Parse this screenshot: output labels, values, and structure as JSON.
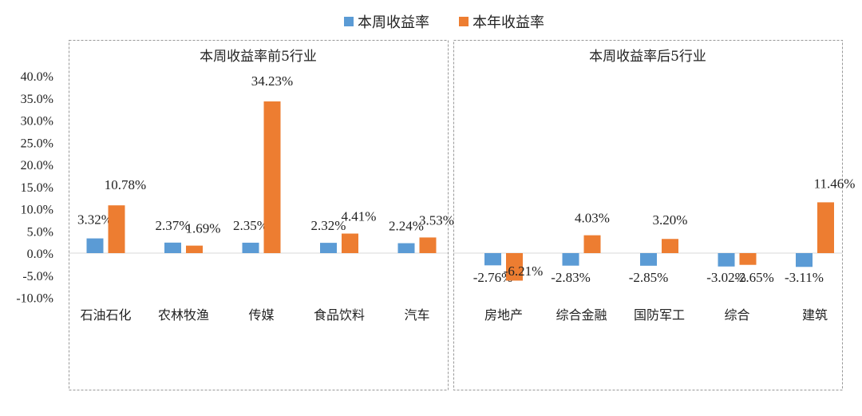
{
  "chart_data": {
    "type": "bar",
    "ylim": [
      -10,
      40
    ],
    "yticks": [
      "40.0%",
      "35.0%",
      "30.0%",
      "25.0%",
      "20.0%",
      "15.0%",
      "10.0%",
      "5.0%",
      "0.0%",
      "-5.0%",
      "-10.0%"
    ],
    "grid": false,
    "legend_position": "top",
    "series_names": [
      "本周收益率",
      "本年收益率"
    ],
    "colors": {
      "weekly": "#5b9bd5",
      "yearly": "#ed7d31"
    },
    "panels": [
      {
        "title": "本周收益率前5行业",
        "categories": [
          "石油石化",
          "农林牧渔",
          "传媒",
          "食品饮料",
          "汽车"
        ],
        "series": [
          {
            "name": "本周收益率",
            "values": [
              3.32,
              2.37,
              2.35,
              2.32,
              2.24
            ],
            "labels": [
              "3.32%",
              "2.37%",
              "2.35%",
              "2.32%",
              "2.24%"
            ]
          },
          {
            "name": "本年收益率",
            "values": [
              10.78,
              1.69,
              34.23,
              4.41,
              3.53
            ],
            "labels": [
              "10.78%",
              "1.69%",
              "34.23%",
              "4.41%",
              "3.53%"
            ]
          }
        ]
      },
      {
        "title": "本周收益率后5行业",
        "categories": [
          "房地产",
          "综合金融",
          "国防军工",
          "综合",
          "建筑"
        ],
        "series": [
          {
            "name": "本周收益率",
            "values": [
              -2.76,
              -2.83,
              -2.85,
              -3.02,
              -3.11
            ],
            "labels": [
              "-2.76%",
              "-2.83%",
              "-2.85%",
              "-3.02%",
              "-3.11%"
            ]
          },
          {
            "name": "本年收益率",
            "values": [
              -6.21,
              4.03,
              3.2,
              -2.65,
              11.46
            ],
            "labels": [
              "-6.21%",
              "4.03%",
              "3.20%",
              "-2.65%",
              "11.46%"
            ]
          }
        ]
      }
    ]
  }
}
